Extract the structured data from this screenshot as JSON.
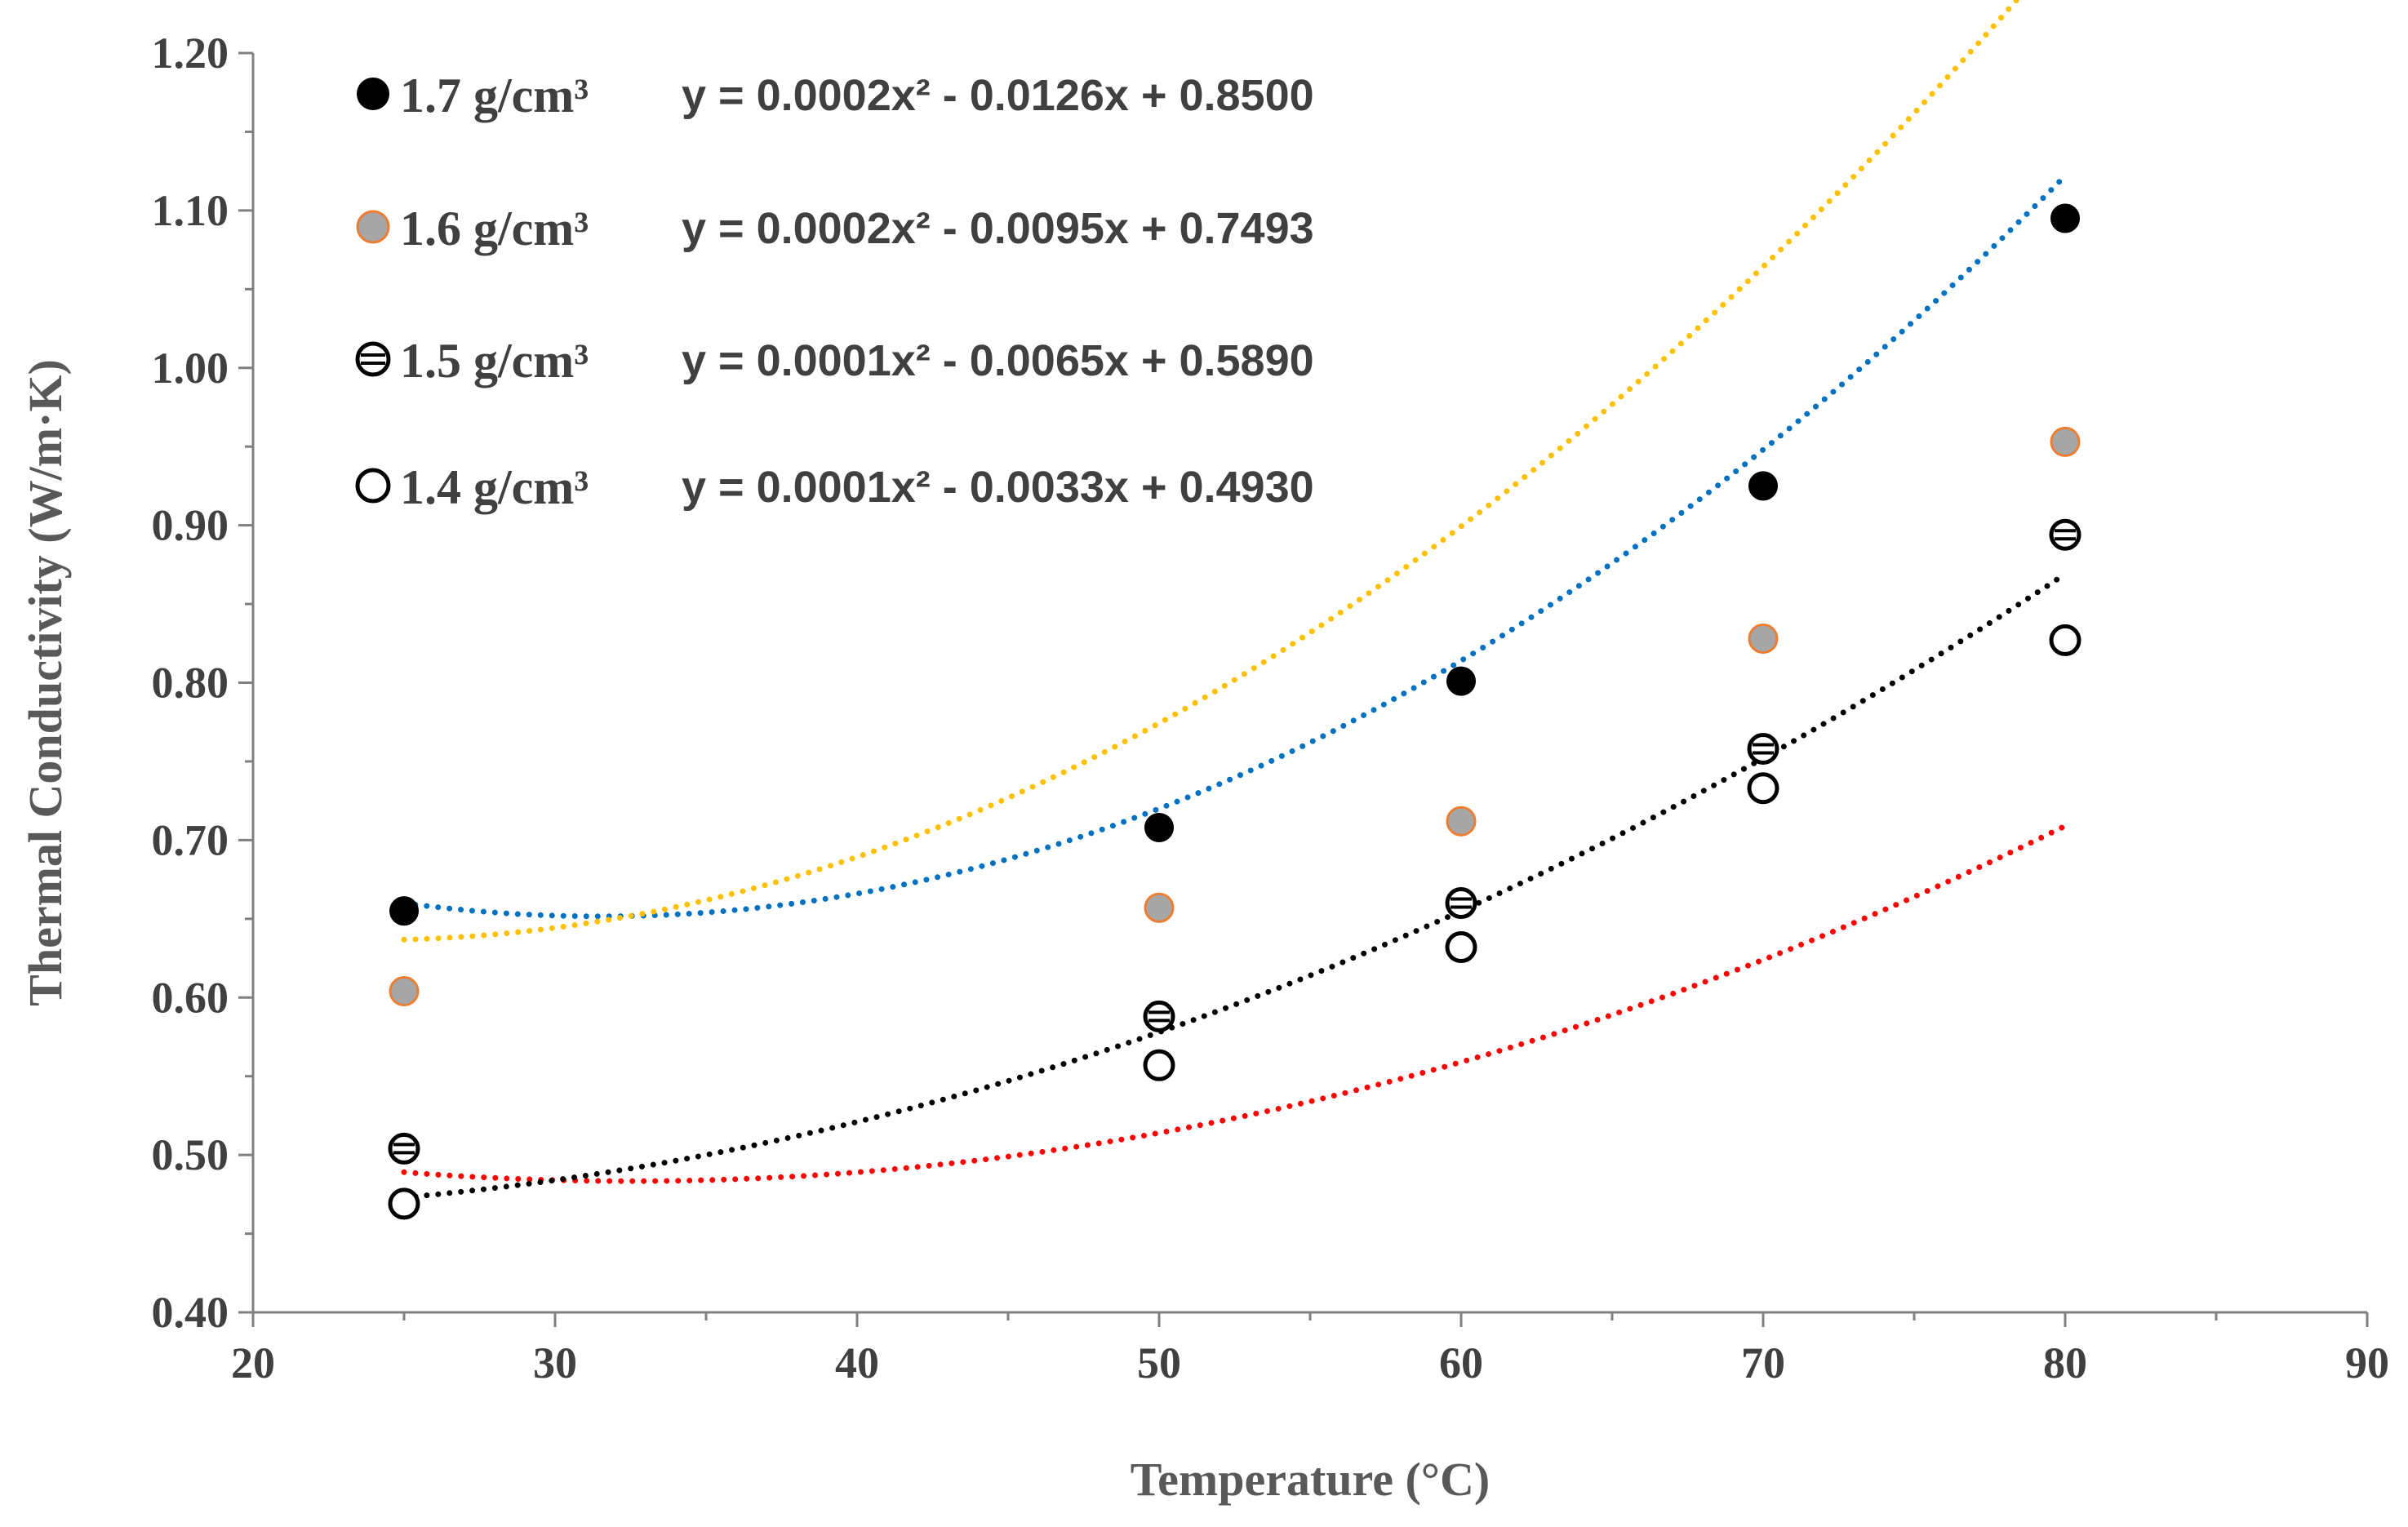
{
  "chart_data": {
    "type": "scatter",
    "title": "",
    "xlabel": "Temperature (°C)",
    "ylabel": "Thermal Conductivity (W/m·K)",
    "xlim": [
      20,
      90
    ],
    "ylim": [
      0.4,
      1.2
    ],
    "x_ticks": [
      "20",
      "30",
      "40",
      "50",
      "60",
      "70",
      "80",
      "90"
    ],
    "y_ticks": [
      "0.40",
      "0.50",
      "0.60",
      "0.70",
      "0.80",
      "0.90",
      "1.00",
      "1.10",
      "1.20"
    ],
    "grid": false,
    "legend_position": "top-left",
    "series": [
      {
        "name": "1.7 g/cm³",
        "equation": "y = 0.0002x² - 0.0126x + 0.8500",
        "marker": "filled-black",
        "trendline_color": "#0070C0",
        "trendline": {
          "a": 0.0002,
          "b": -0.0126,
          "c": 0.85
        },
        "x": [
          25,
          50,
          60,
          70,
          80
        ],
        "y": [
          0.655,
          0.708,
          0.801,
          0.925,
          1.095
        ]
      },
      {
        "name": "1.6 g/cm³",
        "equation": "y = 0.0002x² - 0.0095x + 0.7493",
        "marker": "gray-orange-outline",
        "trendline_color": "#FFC000",
        "trendline": {
          "a": 0.0002,
          "b": -0.0095,
          "c": 0.7493
        },
        "x": [
          25,
          50,
          60,
          70,
          80
        ],
        "y": [
          0.604,
          0.657,
          0.712,
          0.828,
          0.953
        ]
      },
      {
        "name": "1.5 g/cm³",
        "equation": "y = 0.0001x² - 0.0065x + 0.5890",
        "marker": "striped",
        "trendline_color": "#FF0000",
        "trendline": {
          "a": 0.0001,
          "b": -0.0065,
          "c": 0.589
        },
        "x": [
          25,
          50,
          60,
          70,
          80
        ],
        "y": [
          0.504,
          0.588,
          0.66,
          0.758,
          0.894
        ]
      },
      {
        "name": "1.4 g/cm³",
        "equation": "y = 0.0001x² - 0.0033x + 0.4930",
        "marker": "hollow",
        "trendline_color": "#000000",
        "trendline": {
          "a": 0.0001,
          "b": -0.0033,
          "c": 0.493
        },
        "x": [
          25,
          50,
          60,
          70,
          80
        ],
        "y": [
          0.469,
          0.557,
          0.632,
          0.733,
          0.827
        ]
      }
    ]
  }
}
